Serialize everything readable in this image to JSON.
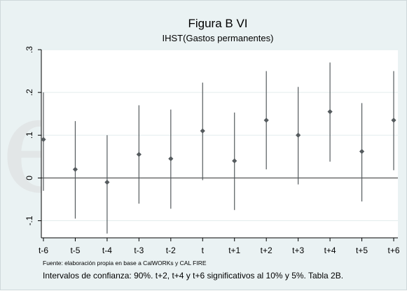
{
  "chart_data": {
    "type": "scatter",
    "title": "Figura B VI",
    "subtitle": "IHST(Gastos permanentes)",
    "categories": [
      "t-6",
      "t-5",
      "t-4",
      "t-3",
      "t-2",
      "t",
      "t+1",
      "t+2",
      "t+3",
      "t+4",
      "t+5",
      "t+6"
    ],
    "series": [
      {
        "estimate": [
          0.09,
          0.02,
          -0.01,
          0.055,
          0.045,
          0.11,
          0.04,
          0.135,
          0.1,
          0.155,
          0.062,
          0.135
        ],
        "ci_low": [
          -0.03,
          -0.095,
          -0.13,
          -0.06,
          -0.072,
          -0.005,
          -0.075,
          0.02,
          -0.015,
          0.038,
          -0.055,
          0.018
        ],
        "ci_high": [
          0.2,
          0.133,
          0.1,
          0.17,
          0.16,
          0.223,
          0.153,
          0.25,
          0.213,
          0.27,
          0.175,
          0.25
        ]
      }
    ],
    "yticks": [
      -0.1,
      0,
      0.1,
      0.2,
      0.3
    ],
    "ytick_labels": [
      "-.1",
      "0",
      ".1",
      ".2",
      ".3"
    ],
    "ylim": [
      -0.14,
      0.3
    ],
    "reference_line": 0,
    "grid": true,
    "source": "Fuente: elaboración propia en base a CalWORKs y CAL FIRE",
    "note": "Intervalos de confianza: 90%. t+2, t+4 y t+6 significativos al 10% y 5%. Tabla 2B."
  },
  "colors": {
    "background": "#eaf2f3",
    "plot_area": "#ffffff",
    "grid": "#e3eced",
    "marker": "#555b5e",
    "error_bar": "#555b5e",
    "zero_line": "#333333"
  },
  "watermark_text": "es"
}
